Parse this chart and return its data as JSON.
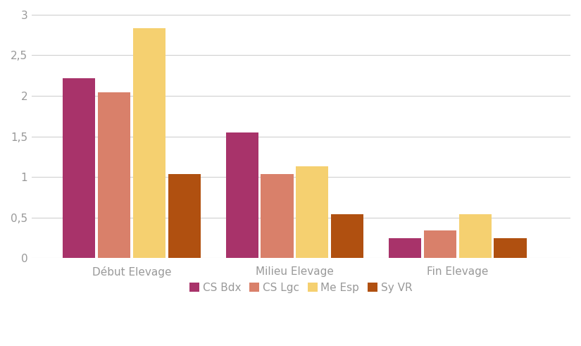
{
  "categories": [
    "Début Elevage",
    "Milieu Elevage",
    "Fin Elevage"
  ],
  "series": {
    "CS Bdx": [
      2.22,
      1.55,
      0.25
    ],
    "CS Lgc": [
      2.04,
      1.04,
      0.34
    ],
    "Me Esp": [
      2.83,
      1.13,
      0.54
    ],
    "Sy VR": [
      1.04,
      0.54,
      0.25
    ]
  },
  "colors": {
    "CS Bdx": "#A8336A",
    "CS Lgc": "#D9806A",
    "Me Esp": "#F5D070",
    "Sy VR": "#B05010"
  },
  "ylim": [
    0,
    3.05
  ],
  "yticks": [
    0,
    0.5,
    1.0,
    1.5,
    2.0,
    2.5,
    3.0
  ],
  "ytick_labels": [
    "0",
    "0,5",
    "1",
    "1,5",
    "2",
    "2,5",
    "3"
  ],
  "background_color": "#ffffff",
  "bar_width": 0.13,
  "legend_pos": "lower center",
  "grid_color": "#d0d0d0",
  "tick_label_color": "#999999",
  "axis_label_color": "#999999",
  "tick_fontsize": 11,
  "legend_fontsize": 11
}
